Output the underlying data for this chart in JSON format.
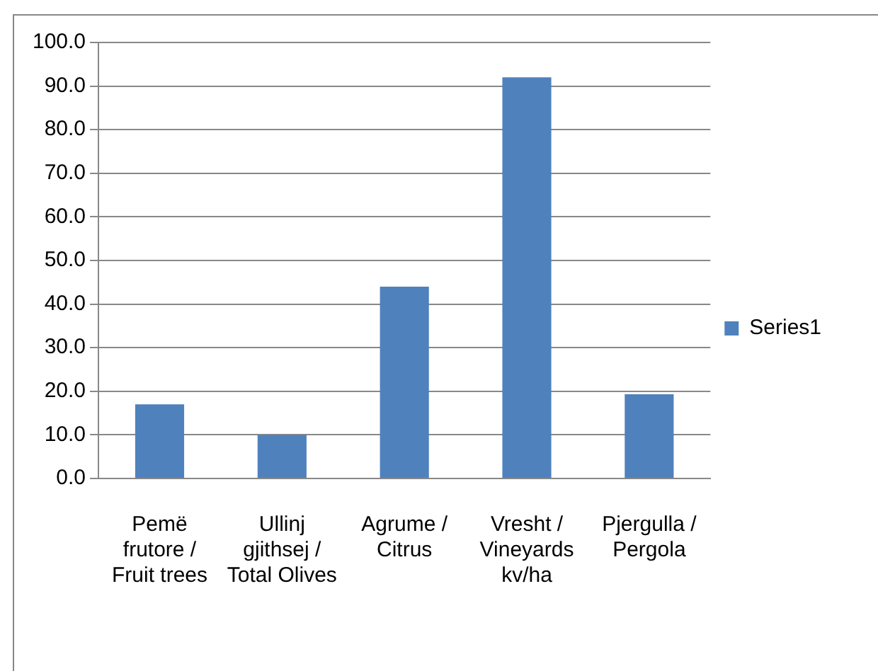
{
  "chart_data": {
    "type": "bar",
    "categories": [
      "Pemë frutore / Fruit trees",
      "Ullinj gjithsej / Total Olives",
      "Agrume / Citrus",
      "Vresht / Vineyards kv/ha",
      "Pjergulla / Pergola"
    ],
    "series": [
      {
        "name": "Series1",
        "color": "#4f81bd",
        "values": [
          17.0,
          10.0,
          44.0,
          92.0,
          19.3
        ]
      }
    ],
    "ylim": [
      0,
      100
    ],
    "yticks": [
      {
        "value": 0,
        "label": "0.0"
      },
      {
        "value": 10,
        "label": "10.0"
      },
      {
        "value": 20,
        "label": "20.0"
      },
      {
        "value": 30,
        "label": "30.0"
      },
      {
        "value": 40,
        "label": "40.0"
      },
      {
        "value": 50,
        "label": "50.0"
      },
      {
        "value": 60,
        "label": "60.0"
      },
      {
        "value": 70,
        "label": "70.0"
      },
      {
        "value": 80,
        "label": "80.0"
      },
      {
        "value": 90,
        "label": "90.0"
      },
      {
        "value": 100,
        "label": "100.0"
      }
    ],
    "grid": "y",
    "legend": "right"
  }
}
